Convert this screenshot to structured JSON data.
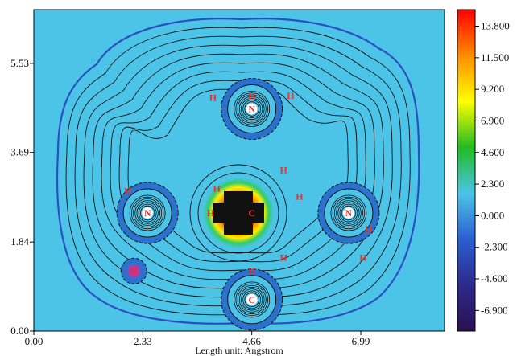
{
  "chart_data": {
    "type": "heatmap",
    "title": "",
    "xlabel": "Length unit: Angstrom",
    "ylabel": "",
    "x_ticks": [
      "0.00",
      "2.33",
      "4.66",
      "6.99"
    ],
    "y_ticks": [
      "0.00",
      "1.84",
      "3.69",
      "5.53"
    ],
    "x_tick_values": [
      0.0,
      2.33,
      4.66,
      6.99
    ],
    "y_tick_values": [
      0.0,
      1.84,
      3.69,
      5.53
    ],
    "xlim": [
      0.0,
      8.78
    ],
    "ylim": [
      0.0,
      6.64
    ],
    "colorbar": {
      "labels": [
        "13.800",
        "11.500",
        "9.200",
        "6.900",
        "4.600",
        "2.300",
        "0.000",
        "-2.300",
        "-4.600",
        "-6.900"
      ],
      "values": [
        13.8,
        11.5,
        9.2,
        6.9,
        4.6,
        2.3,
        0.0,
        -2.3,
        -4.6,
        -6.9
      ],
      "range": [
        -8.4,
        15.0
      ],
      "colors": [
        "#ff0000",
        "#ff8c00",
        "#ffff00",
        "#22bb22",
        "#4cc4e8",
        "#2b5fcf",
        "#2b2a8a",
        "#2a1050"
      ]
    },
    "atoms": [
      {
        "symbol": "C",
        "x": 4.66,
        "y": 2.44
      },
      {
        "symbol": "N",
        "x": 4.66,
        "y": 4.59
      },
      {
        "symbol": "N",
        "x": 2.43,
        "y": 2.44
      },
      {
        "symbol": "N",
        "x": 6.73,
        "y": 2.44
      },
      {
        "symbol": "C",
        "x": 4.66,
        "y": 0.65
      },
      {
        "symbol": "H",
        "x": 3.83,
        "y": 4.82
      },
      {
        "symbol": "H",
        "x": 4.66,
        "y": 4.86
      },
      {
        "symbol": "H",
        "x": 5.49,
        "y": 4.86
      },
      {
        "symbol": "H",
        "x": 2.01,
        "y": 2.9
      },
      {
        "symbol": "H",
        "x": 2.14,
        "y": 1.24
      },
      {
        "symbol": "H",
        "x": 7.16,
        "y": 2.11
      },
      {
        "symbol": "H",
        "x": 7.04,
        "y": 1.52
      },
      {
        "symbol": "H",
        "x": 4.66,
        "y": 1.24
      },
      {
        "symbol": "H",
        "x": 5.34,
        "y": 1.52
      },
      {
        "symbol": "H",
        "x": 5.34,
        "y": 3.33
      },
      {
        "symbol": "H",
        "x": 5.68,
        "y": 2.78
      },
      {
        "symbol": "H",
        "x": 3.91,
        "y": 2.95
      },
      {
        "symbol": "H",
        "x": 3.78,
        "y": 2.44
      }
    ],
    "background_color": "#4cc4e8",
    "contour_color": "#111111"
  }
}
